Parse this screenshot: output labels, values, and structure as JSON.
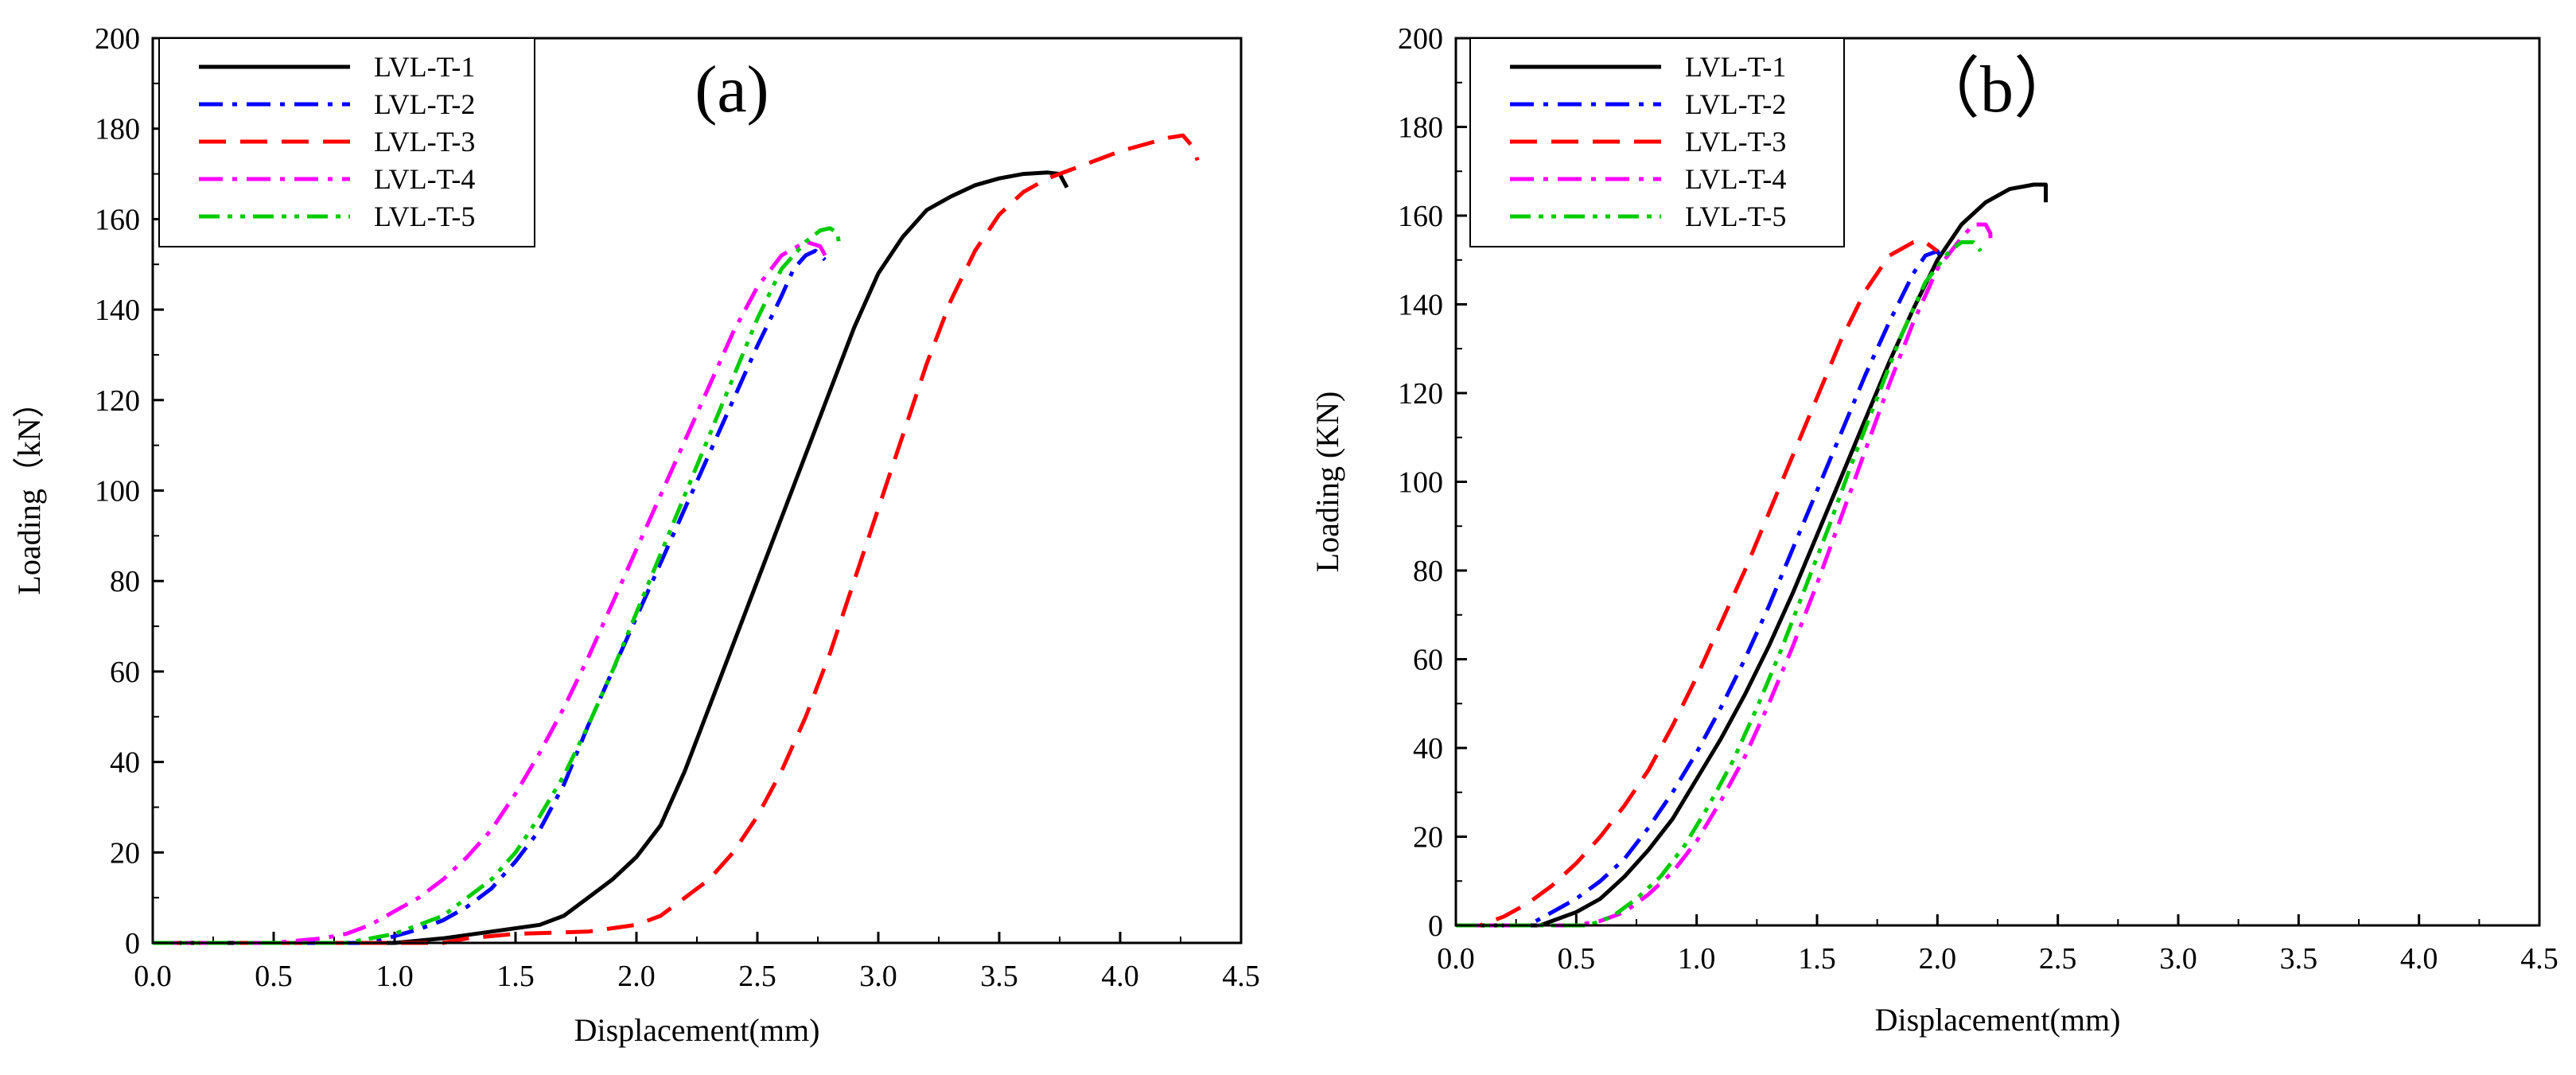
{
  "chart_data": [
    {
      "type": "line",
      "panel_label": "(a)",
      "title": "",
      "xlabel": "Displacement(mm)",
      "ylabel": "Loading（kN）",
      "xlim": [
        0,
        4.5
      ],
      "ylim": [
        0,
        200
      ],
      "xticks": [
        0.0,
        0.5,
        1.0,
        1.5,
        2.0,
        2.5,
        3.0,
        3.5,
        4.0,
        4.5
      ],
      "xtick_labels": [
        "0.0",
        "0.5",
        "1.0",
        "1.5",
        "2.0",
        "2.5",
        "3.0",
        "3.5",
        "4.0",
        "4.5"
      ],
      "yticks": [
        0,
        20,
        40,
        60,
        80,
        100,
        120,
        140,
        160,
        180,
        200
      ],
      "ytick_labels": [
        "0",
        "20",
        "40",
        "60",
        "80",
        "100",
        "120",
        "140",
        "160",
        "180",
        "200"
      ],
      "legend_position": "top-left",
      "series": [
        {
          "name": "LVL-T-1",
          "color": "#000000",
          "dash": "solid",
          "points": [
            [
              0.0,
              0
            ],
            [
              1.0,
              0
            ],
            [
              1.2,
              1
            ],
            [
              1.4,
              2.5
            ],
            [
              1.6,
              4
            ],
            [
              1.7,
              6
            ],
            [
              1.8,
              10
            ],
            [
              1.9,
              14
            ],
            [
              2.0,
              19
            ],
            [
              2.1,
              26
            ],
            [
              2.2,
              38
            ],
            [
              2.3,
              52
            ],
            [
              2.4,
              66
            ],
            [
              2.5,
              80
            ],
            [
              2.6,
              94
            ],
            [
              2.7,
              108
            ],
            [
              2.8,
              122
            ],
            [
              2.9,
              136
            ],
            [
              3.0,
              148
            ],
            [
              3.1,
              156
            ],
            [
              3.2,
              162
            ],
            [
              3.3,
              165
            ],
            [
              3.4,
              167.5
            ],
            [
              3.5,
              169
            ],
            [
              3.6,
              170
            ],
            [
              3.7,
              170.3
            ],
            [
              3.75,
              170
            ],
            [
              3.78,
              167
            ]
          ]
        },
        {
          "name": "LVL-T-2",
          "color": "#0000ff",
          "dash": "dashdot",
          "points": [
            [
              0.0,
              0
            ],
            [
              0.9,
              0
            ],
            [
              1.0,
              1.5
            ],
            [
              1.1,
              3
            ],
            [
              1.2,
              5
            ],
            [
              1.3,
              8
            ],
            [
              1.4,
              12
            ],
            [
              1.5,
              18
            ],
            [
              1.6,
              25
            ],
            [
              1.7,
              35
            ],
            [
              1.8,
              48
            ],
            [
              1.9,
              60
            ],
            [
              2.0,
              72
            ],
            [
              2.1,
              84
            ],
            [
              2.2,
              96
            ],
            [
              2.3,
              108
            ],
            [
              2.4,
              120
            ],
            [
              2.5,
              132
            ],
            [
              2.6,
              143
            ],
            [
              2.65,
              149
            ],
            [
              2.7,
              152
            ],
            [
              2.74,
              153
            ],
            [
              2.78,
              151
            ]
          ]
        },
        {
          "name": "LVL-T-3",
          "color": "#ff0000",
          "dash": "dash",
          "points": [
            [
              0.0,
              0
            ],
            [
              1.2,
              0
            ],
            [
              1.3,
              1
            ],
            [
              1.5,
              2
            ],
            [
              1.8,
              2.5
            ],
            [
              2.0,
              4
            ],
            [
              2.1,
              6
            ],
            [
              2.2,
              10
            ],
            [
              2.3,
              14
            ],
            [
              2.4,
              20
            ],
            [
              2.5,
              28
            ],
            [
              2.6,
              38
            ],
            [
              2.7,
              50
            ],
            [
              2.8,
              64
            ],
            [
              2.9,
              80
            ],
            [
              3.0,
              96
            ],
            [
              3.1,
              112
            ],
            [
              3.2,
              128
            ],
            [
              3.3,
              142
            ],
            [
              3.4,
              153
            ],
            [
              3.5,
              161
            ],
            [
              3.6,
              166
            ],
            [
              3.7,
              169
            ],
            [
              3.8,
              171
            ],
            [
              3.9,
              173
            ],
            [
              4.0,
              175
            ],
            [
              4.1,
              176.5
            ],
            [
              4.2,
              178
            ],
            [
              4.26,
              178.5
            ],
            [
              4.3,
              176
            ],
            [
              4.32,
              173
            ]
          ]
        },
        {
          "name": "LVL-T-4",
          "color": "#ff00ff",
          "dash": "dashdot",
          "points": [
            [
              0.0,
              0
            ],
            [
              0.5,
              0
            ],
            [
              0.7,
              1
            ],
            [
              0.8,
              2
            ],
            [
              0.9,
              4
            ],
            [
              1.0,
              7
            ],
            [
              1.1,
              10
            ],
            [
              1.2,
              14
            ],
            [
              1.3,
              19
            ],
            [
              1.4,
              25
            ],
            [
              1.5,
              33
            ],
            [
              1.6,
              42
            ],
            [
              1.7,
              52
            ],
            [
              1.8,
              63
            ],
            [
              1.9,
              75
            ],
            [
              2.0,
              87
            ],
            [
              2.1,
              99
            ],
            [
              2.2,
              111
            ],
            [
              2.3,
              123
            ],
            [
              2.4,
              135
            ],
            [
              2.5,
              145
            ],
            [
              2.6,
              152
            ],
            [
              2.7,
              155
            ],
            [
              2.76,
              154
            ],
            [
              2.78,
              152
            ]
          ]
        },
        {
          "name": "LVL-T-5",
          "color": "#00cc00",
          "dash": "dashdotdot",
          "points": [
            [
              0.0,
              0
            ],
            [
              0.8,
              0
            ],
            [
              0.9,
              1
            ],
            [
              1.0,
              2
            ],
            [
              1.1,
              4
            ],
            [
              1.2,
              6
            ],
            [
              1.3,
              10
            ],
            [
              1.4,
              14
            ],
            [
              1.5,
              20
            ],
            [
              1.6,
              28
            ],
            [
              1.7,
              37
            ],
            [
              1.8,
              48
            ],
            [
              1.9,
              60
            ],
            [
              2.0,
              73
            ],
            [
              2.1,
              86
            ],
            [
              2.2,
              99
            ],
            [
              2.3,
              112
            ],
            [
              2.4,
              125
            ],
            [
              2.5,
              138
            ],
            [
              2.6,
              149
            ],
            [
              2.7,
              155
            ],
            [
              2.76,
              157.5
            ],
            [
              2.8,
              158
            ],
            [
              2.83,
              157
            ],
            [
              2.84,
              154
            ]
          ]
        }
      ]
    },
    {
      "type": "line",
      "panel_label": "（b）",
      "title": "",
      "xlabel": "Displacement(mm)",
      "ylabel": "Loading (KN)",
      "xlim": [
        0,
        4.5
      ],
      "ylim": [
        0,
        200
      ],
      "xticks": [
        0.0,
        0.5,
        1.0,
        1.5,
        2.0,
        2.5,
        3.0,
        3.5,
        4.0,
        4.5
      ],
      "xtick_labels": [
        "0.0",
        "0.5",
        "1.0",
        "1.5",
        "2.0",
        "2.5",
        "3.0",
        "3.5",
        "4.0",
        "4.5"
      ],
      "yticks": [
        0,
        20,
        40,
        60,
        80,
        100,
        120,
        140,
        160,
        180,
        200
      ],
      "ytick_labels": [
        "0",
        "20",
        "40",
        "60",
        "80",
        "100",
        "120",
        "140",
        "160",
        "180",
        "200"
      ],
      "legend_position": "top-left",
      "series": [
        {
          "name": "LVL-T-1",
          "color": "#000000",
          "dash": "solid",
          "points": [
            [
              0.0,
              0
            ],
            [
              0.35,
              0
            ],
            [
              0.4,
              1
            ],
            [
              0.5,
              3
            ],
            [
              0.6,
              6
            ],
            [
              0.7,
              11
            ],
            [
              0.8,
              17
            ],
            [
              0.9,
              24
            ],
            [
              1.0,
              33
            ],
            [
              1.1,
              42
            ],
            [
              1.2,
              52
            ],
            [
              1.3,
              63
            ],
            [
              1.4,
              75
            ],
            [
              1.5,
              88
            ],
            [
              1.6,
              101
            ],
            [
              1.7,
              114
            ],
            [
              1.8,
              127
            ],
            [
              1.9,
              139
            ],
            [
              2.0,
              150
            ],
            [
              2.1,
              158
            ],
            [
              2.2,
              163
            ],
            [
              2.3,
              166
            ],
            [
              2.4,
              167
            ],
            [
              2.45,
              167
            ],
            [
              2.45,
              163
            ]
          ]
        },
        {
          "name": "LVL-T-2",
          "color": "#0000ff",
          "dash": "dashdot",
          "points": [
            [
              0.0,
              0
            ],
            [
              0.3,
              0
            ],
            [
              0.4,
              3
            ],
            [
              0.5,
              6
            ],
            [
              0.6,
              10
            ],
            [
              0.7,
              15
            ],
            [
              0.8,
              22
            ],
            [
              0.9,
              30
            ],
            [
              1.0,
              39
            ],
            [
              1.1,
              49
            ],
            [
              1.2,
              60
            ],
            [
              1.3,
              72
            ],
            [
              1.4,
              85
            ],
            [
              1.5,
              98
            ],
            [
              1.6,
              111
            ],
            [
              1.7,
              124
            ],
            [
              1.8,
              136
            ],
            [
              1.9,
              147
            ],
            [
              1.95,
              151
            ],
            [
              2.0,
              152
            ],
            [
              2.02,
              150
            ]
          ]
        },
        {
          "name": "LVL-T-3",
          "color": "#ff0000",
          "dash": "dash",
          "points": [
            [
              0.0,
              0
            ],
            [
              0.1,
              0
            ],
            [
              0.2,
              2
            ],
            [
              0.3,
              5
            ],
            [
              0.4,
              9
            ],
            [
              0.5,
              14
            ],
            [
              0.6,
              20
            ],
            [
              0.7,
              27
            ],
            [
              0.8,
              35
            ],
            [
              0.9,
              45
            ],
            [
              1.0,
              56
            ],
            [
              1.1,
              68
            ],
            [
              1.2,
              80
            ],
            [
              1.3,
              93
            ],
            [
              1.4,
              106
            ],
            [
              1.5,
              119
            ],
            [
              1.6,
              132
            ],
            [
              1.7,
              143
            ],
            [
              1.8,
              151
            ],
            [
              1.9,
              154
            ],
            [
              1.95,
              154
            ],
            [
              2.0,
              152
            ]
          ]
        },
        {
          "name": "LVL-T-4",
          "color": "#ff00ff",
          "dash": "dashdot",
          "points": [
            [
              0.0,
              0
            ],
            [
              0.5,
              0
            ],
            [
              0.6,
              1
            ],
            [
              0.7,
              3
            ],
            [
              0.8,
              7
            ],
            [
              0.9,
              12
            ],
            [
              1.0,
              19
            ],
            [
              1.1,
              28
            ],
            [
              1.2,
              38
            ],
            [
              1.3,
              50
            ],
            [
              1.4,
              63
            ],
            [
              1.5,
              77
            ],
            [
              1.6,
              92
            ],
            [
              1.7,
              107
            ],
            [
              1.8,
              122
            ],
            [
              1.9,
              136
            ],
            [
              2.0,
              148
            ],
            [
              2.1,
              155
            ],
            [
              2.15,
              158
            ],
            [
              2.2,
              158
            ],
            [
              2.22,
              156
            ],
            [
              2.22,
              153
            ]
          ]
        },
        {
          "name": "LVL-T-5",
          "color": "#00cc00",
          "dash": "dashdotdot",
          "points": [
            [
              0.0,
              0
            ],
            [
              0.55,
              0
            ],
            [
              0.65,
              2
            ],
            [
              0.75,
              6
            ],
            [
              0.85,
              11
            ],
            [
              0.95,
              18
            ],
            [
              1.05,
              27
            ],
            [
              1.15,
              37
            ],
            [
              1.25,
              49
            ],
            [
              1.35,
              62
            ],
            [
              1.45,
              76
            ],
            [
              1.55,
              90
            ],
            [
              1.65,
              105
            ],
            [
              1.75,
              119
            ],
            [
              1.85,
              133
            ],
            [
              1.95,
              145
            ],
            [
              2.05,
              152
            ],
            [
              2.1,
              154
            ],
            [
              2.15,
              154
            ],
            [
              2.18,
              152
            ]
          ]
        }
      ]
    }
  ]
}
